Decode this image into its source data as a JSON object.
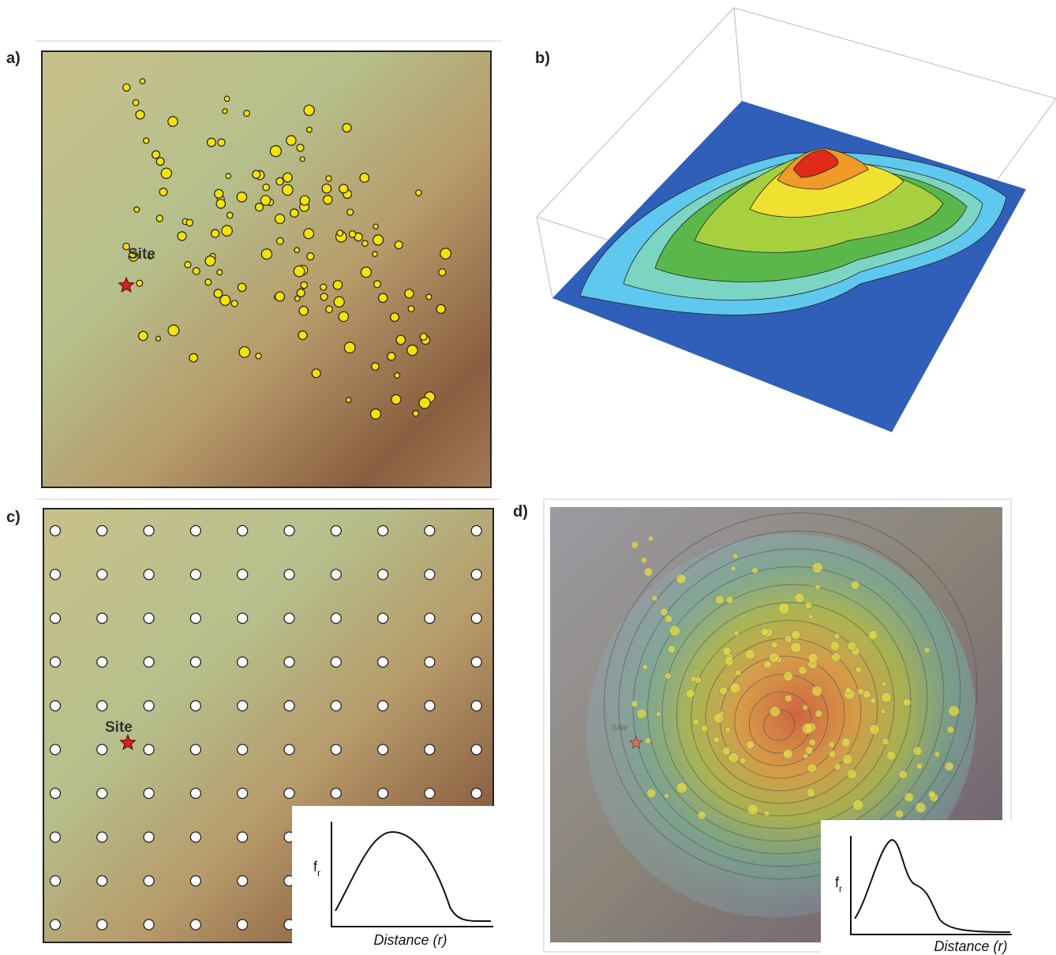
{
  "panels": [
    {
      "label": "a)",
      "site_label": "Site"
    },
    {
      "label": "b)"
    },
    {
      "label": "c)",
      "site_label": "Site",
      "inset": {
        "y_label": "f",
        "y_label_sub": "r",
        "x_label": "Distance (r)"
      }
    },
    {
      "label": "d)",
      "site_label": "Site",
      "inset": {
        "y_label": "f",
        "y_label_sub": "r",
        "x_label": "Distance (r)"
      }
    }
  ]
}
